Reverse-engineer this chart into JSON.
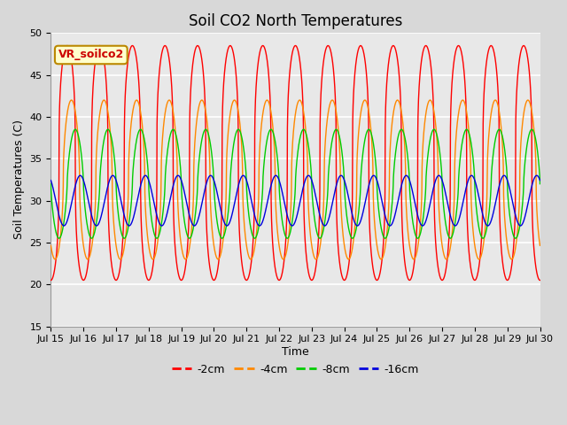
{
  "title": "Soil CO2 North Temperatures",
  "xlabel": "Time",
  "ylabel": "Soil Temperatures (C)",
  "ylim": [
    15,
    50
  ],
  "xlim": [
    0,
    15
  ],
  "fig_width": 6.4,
  "fig_height": 4.8,
  "dpi": 100,
  "background_color": "#d8d8d8",
  "plot_bg_color": "#e8e8e8",
  "grid_color": "#ffffff",
  "annotation_label": "VR_soilco2",
  "annotation_box_color": "#ffffcc",
  "annotation_text_color": "#cc0000",
  "annotation_border_color": "#bb8800",
  "xtick_labels": [
    "Jul 15",
    "Jul 16",
    "Jul 17",
    "Jul 18",
    "Jul 19",
    "Jul 20",
    "Jul 21",
    "Jul 22",
    "Jul 23",
    "Jul 24",
    "Jul 25",
    "Jul 26",
    "Jul 27",
    "Jul 28",
    "Jul 29",
    "Jul 30"
  ],
  "yticks": [
    15,
    20,
    25,
    30,
    35,
    40,
    45,
    50
  ],
  "series": [
    {
      "label": "-2cm",
      "color": "#ff0000",
      "amplitude": 14.0,
      "mean": 34.5,
      "phase": 0.25,
      "sharpness": 3.0
    },
    {
      "label": "-4cm",
      "color": "#ff8800",
      "amplitude": 9.5,
      "mean": 32.5,
      "phase": 0.38,
      "sharpness": 2.0
    },
    {
      "label": "-8cm",
      "color": "#00cc00",
      "amplitude": 6.5,
      "mean": 32.0,
      "phase": 0.5,
      "sharpness": 1.5
    },
    {
      "label": "-16cm",
      "color": "#0000dd",
      "amplitude": 3.0,
      "mean": 30.0,
      "phase": 0.65,
      "sharpness": 1.0
    }
  ],
  "line_width": 1.0,
  "title_fontsize": 12,
  "axis_label_fontsize": 9,
  "tick_fontsize": 8,
  "legend_fontsize": 9
}
